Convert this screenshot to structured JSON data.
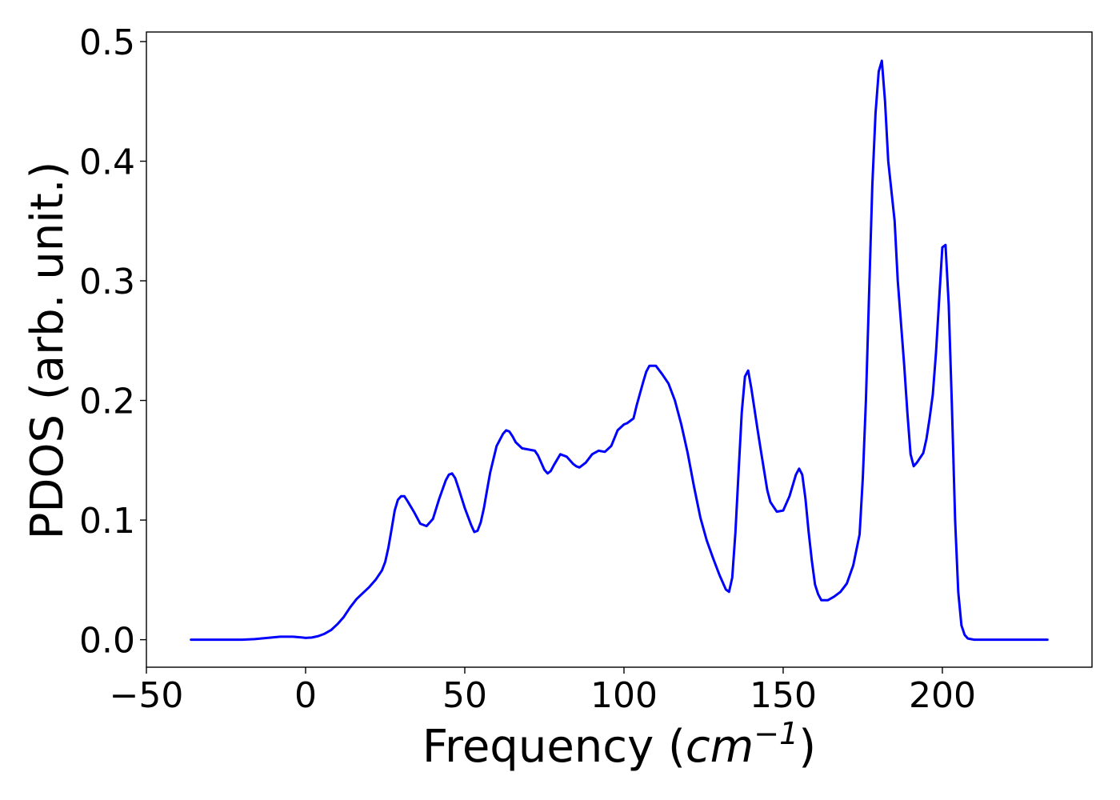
{
  "chart_data": {
    "type": "line",
    "title": "",
    "xlabel": "Frequency (cm⁻¹)",
    "xlabel_parts": {
      "text": "Frequency (",
      "math": "cm",
      "superscript": "−1",
      "close": ")"
    },
    "ylabel": "PDOS (arb. unit.)",
    "xlim": [
      -50,
      247
    ],
    "ylim": [
      -0.023,
      0.508
    ],
    "xticks": [
      -50,
      0,
      50,
      100,
      150,
      200
    ],
    "xtick_labels": [
      "−50",
      "0",
      "50",
      "100",
      "150",
      "200"
    ],
    "yticks": [
      0.0,
      0.1,
      0.2,
      0.3,
      0.4,
      0.5
    ],
    "ytick_labels": [
      "0.0",
      "0.1",
      "0.2",
      "0.3",
      "0.4",
      "0.5"
    ],
    "grid": false,
    "legend": "none",
    "series": [
      {
        "color": "#0000ff",
        "points": [
          [
            -36,
            0.0
          ],
          [
            -30,
            0.0
          ],
          [
            -25,
            0.0
          ],
          [
            -20,
            0.0
          ],
          [
            -16,
            0.0005
          ],
          [
            -12,
            0.0015
          ],
          [
            -8,
            0.0025
          ],
          [
            -4,
            0.0025
          ],
          [
            -1,
            0.0018
          ],
          [
            0,
            0.0015
          ],
          [
            2,
            0.0018
          ],
          [
            4,
            0.003
          ],
          [
            6,
            0.005
          ],
          [
            8,
            0.008
          ],
          [
            10,
            0.013
          ],
          [
            12,
            0.019
          ],
          [
            14,
            0.027
          ],
          [
            16,
            0.034
          ],
          [
            18,
            0.039
          ],
          [
            20,
            0.044
          ],
          [
            22,
            0.05
          ],
          [
            24,
            0.058
          ],
          [
            25,
            0.065
          ],
          [
            26,
            0.077
          ],
          [
            27,
            0.092
          ],
          [
            28,
            0.108
          ],
          [
            29,
            0.117
          ],
          [
            30,
            0.12
          ],
          [
            31,
            0.12
          ],
          [
            32,
            0.116
          ],
          [
            34,
            0.107
          ],
          [
            36,
            0.097
          ],
          [
            38,
            0.095
          ],
          [
            40,
            0.101
          ],
          [
            42,
            0.118
          ],
          [
            44,
            0.133
          ],
          [
            45,
            0.138
          ],
          [
            46,
            0.139
          ],
          [
            47,
            0.135
          ],
          [
            48,
            0.127
          ],
          [
            50,
            0.11
          ],
          [
            52,
            0.096
          ],
          [
            53,
            0.09
          ],
          [
            54,
            0.091
          ],
          [
            55,
            0.098
          ],
          [
            56,
            0.11
          ],
          [
            57,
            0.125
          ],
          [
            58,
            0.14
          ],
          [
            60,
            0.162
          ],
          [
            62,
            0.172
          ],
          [
            63,
            0.175
          ],
          [
            64,
            0.174
          ],
          [
            65,
            0.17
          ],
          [
            66,
            0.165
          ],
          [
            68,
            0.16
          ],
          [
            70,
            0.159
          ],
          [
            72,
            0.158
          ],
          [
            73,
            0.154
          ],
          [
            74,
            0.148
          ],
          [
            75,
            0.142
          ],
          [
            76,
            0.139
          ],
          [
            77,
            0.141
          ],
          [
            78,
            0.146
          ],
          [
            80,
            0.155
          ],
          [
            82,
            0.153
          ],
          [
            84,
            0.147
          ],
          [
            85,
            0.145
          ],
          [
            86,
            0.144
          ],
          [
            88,
            0.148
          ],
          [
            90,
            0.155
          ],
          [
            92,
            0.158
          ],
          [
            94,
            0.157
          ],
          [
            96,
            0.162
          ],
          [
            98,
            0.175
          ],
          [
            100,
            0.18
          ],
          [
            101,
            0.181
          ],
          [
            103,
            0.185
          ],
          [
            104,
            0.196
          ],
          [
            106,
            0.215
          ],
          [
            107,
            0.224
          ],
          [
            108,
            0.229
          ],
          [
            110,
            0.229
          ],
          [
            112,
            0.222
          ],
          [
            114,
            0.214
          ],
          [
            116,
            0.2
          ],
          [
            118,
            0.18
          ],
          [
            120,
            0.156
          ],
          [
            122,
            0.128
          ],
          [
            124,
            0.102
          ],
          [
            126,
            0.083
          ],
          [
            128,
            0.068
          ],
          [
            130,
            0.054
          ],
          [
            132,
            0.042
          ],
          [
            133,
            0.04
          ],
          [
            134,
            0.052
          ],
          [
            135,
            0.09
          ],
          [
            136,
            0.14
          ],
          [
            137,
            0.19
          ],
          [
            138,
            0.22
          ],
          [
            139,
            0.225
          ],
          [
            140,
            0.21
          ],
          [
            142,
            0.175
          ],
          [
            143,
            0.158
          ],
          [
            145,
            0.125
          ],
          [
            146,
            0.115
          ],
          [
            148,
            0.107
          ],
          [
            150,
            0.108
          ],
          [
            152,
            0.12
          ],
          [
            154,
            0.138
          ],
          [
            155,
            0.143
          ],
          [
            156,
            0.138
          ],
          [
            157,
            0.118
          ],
          [
            158,
            0.09
          ],
          [
            159,
            0.066
          ],
          [
            160,
            0.046
          ],
          [
            161,
            0.038
          ],
          [
            162,
            0.033
          ],
          [
            164,
            0.033
          ],
          [
            166,
            0.036
          ],
          [
            168,
            0.04
          ],
          [
            170,
            0.047
          ],
          [
            172,
            0.062
          ],
          [
            174,
            0.088
          ],
          [
            175,
            0.135
          ],
          [
            176,
            0.2
          ],
          [
            177,
            0.29
          ],
          [
            178,
            0.38
          ],
          [
            179,
            0.44
          ],
          [
            180,
            0.475
          ],
          [
            181,
            0.484
          ],
          [
            182,
            0.45
          ],
          [
            183,
            0.4
          ],
          [
            185,
            0.35
          ],
          [
            186,
            0.3
          ],
          [
            188,
            0.23
          ],
          [
            189,
            0.19
          ],
          [
            190,
            0.155
          ],
          [
            191,
            0.145
          ],
          [
            192,
            0.148
          ],
          [
            194,
            0.156
          ],
          [
            195,
            0.168
          ],
          [
            196,
            0.185
          ],
          [
            197,
            0.205
          ],
          [
            198,
            0.24
          ],
          [
            199,
            0.285
          ],
          [
            200,
            0.328
          ],
          [
            201,
            0.33
          ],
          [
            202,
            0.28
          ],
          [
            203,
            0.195
          ],
          [
            204,
            0.1
          ],
          [
            205,
            0.04
          ],
          [
            206,
            0.012
          ],
          [
            207,
            0.004
          ],
          [
            208,
            0.001
          ],
          [
            210,
            0.0
          ],
          [
            215,
            0.0
          ],
          [
            220,
            0.0
          ],
          [
            230,
            0.0
          ],
          [
            233,
            0.0
          ]
        ]
      }
    ]
  }
}
